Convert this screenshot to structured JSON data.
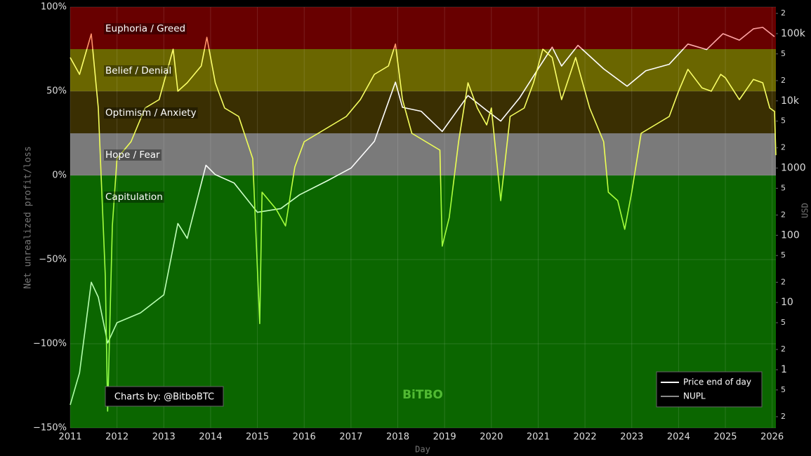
{
  "chart_data": {
    "type": "line",
    "yaxis_title": "Net unrealized profit/loss",
    "y2axis_title": "USD",
    "xaxis_title": "Day",
    "credit": "Charts by: @BitboBTC",
    "watermark": "BiTBO",
    "xlim": [
      2011,
      2026.08
    ],
    "xticks": [
      2011,
      2012,
      2013,
      2014,
      2015,
      2016,
      2017,
      2018,
      2019,
      2020,
      2021,
      2022,
      2023,
      2024,
      2025,
      2026
    ],
    "ylim": [
      -150,
      100
    ],
    "yticks": [
      {
        "value": -150,
        "label": "−150%"
      },
      {
        "value": -100,
        "label": "−100%"
      },
      {
        "value": -50,
        "label": "−50%"
      },
      {
        "value": 0,
        "label": "0%"
      },
      {
        "value": 50,
        "label": "50%"
      },
      {
        "value": 100,
        "label": "100%"
      }
    ],
    "y2_log": true,
    "y2lim": [
      0.136,
      249000
    ],
    "y2ticks": [
      {
        "value": 0.2,
        "label": "2"
      },
      {
        "value": 0.5,
        "label": "5"
      },
      1,
      2,
      5,
      10,
      {
        "value": 20,
        "label": "2"
      },
      {
        "value": 50,
        "label": "5"
      },
      100,
      {
        "value": 200,
        "label": "2"
      },
      {
        "value": 500,
        "label": "5"
      },
      1000,
      {
        "value": 2000,
        "label": "2"
      },
      {
        "value": 5000,
        "label": "5"
      },
      {
        "value": 10000,
        "label": "10k"
      },
      {
        "value": 20000,
        "label": "2"
      },
      {
        "value": 50000,
        "label": "5"
      },
      {
        "value": 100000,
        "label": "100k"
      },
      {
        "value": 200000,
        "label": "2"
      }
    ],
    "grid": true,
    "legend": "bottom-right",
    "zones": [
      {
        "name": "Euphoria / Greed",
        "from": 75,
        "to": 100,
        "color": "#680000"
      },
      {
        "name": "Belief / Denial",
        "from": 50,
        "to": 75,
        "color": "#6a6600"
      },
      {
        "name": "Optimism / Anxiety",
        "from": 25,
        "to": 50,
        "color": "#3a2f02"
      },
      {
        "name": "Hope / Fear",
        "from": 0,
        "to": 25,
        "color": "#7a7a7a"
      },
      {
        "name": "Capitulation",
        "from": -150,
        "to": 0,
        "color": "#0b6600"
      }
    ],
    "series": [
      {
        "name": "Price end of day",
        "color": "#ffffff",
        "axis": "y2",
        "x": [
          2011.0,
          2011.2,
          2011.45,
          2011.6,
          2011.8,
          2012.0,
          2012.5,
          2013.0,
          2013.3,
          2013.5,
          2013.9,
          2014.1,
          2014.5,
          2015.0,
          2015.5,
          2015.9,
          2016.5,
          2017.0,
          2017.5,
          2017.95,
          2018.1,
          2018.5,
          2018.95,
          2019.5,
          2019.9,
          2020.2,
          2020.6,
          2021.0,
          2021.3,
          2021.5,
          2021.85,
          2022.4,
          2022.9,
          2023.3,
          2023.8,
          2024.2,
          2024.6,
          2024.95,
          2025.3,
          2025.6,
          2025.8,
          2026.05
        ],
        "values": [
          0.3,
          0.9,
          20,
          12,
          2.5,
          5,
          7,
          13,
          150,
          90,
          1100,
          800,
          600,
          220,
          250,
          400,
          650,
          1000,
          2500,
          19000,
          8000,
          7000,
          3500,
          12000,
          7200,
          5000,
          11000,
          30000,
          63000,
          33000,
          67000,
          30000,
          16500,
          28000,
          35000,
          70000,
          58000,
          100000,
          80000,
          118000,
          124000,
          90000
        ]
      },
      {
        "name": "NUPL",
        "color": "#8a8a8a",
        "x": [
          2011.0,
          2011.2,
          2011.45,
          2011.6,
          2011.75,
          2011.8,
          2011.9,
          2012.0,
          2012.3,
          2012.6,
          2012.9,
          2013.2,
          2013.3,
          2013.5,
          2013.8,
          2013.92,
          2014.1,
          2014.3,
          2014.6,
          2014.9,
          2015.05,
          2015.1,
          2015.4,
          2015.6,
          2015.8,
          2016.0,
          2016.3,
          2016.6,
          2016.9,
          2017.2,
          2017.5,
          2017.8,
          2017.95,
          2018.1,
          2018.3,
          2018.6,
          2018.9,
          2018.95,
          2019.1,
          2019.3,
          2019.5,
          2019.7,
          2019.9,
          2020.0,
          2020.2,
          2020.4,
          2020.7,
          2020.9,
          2021.1,
          2021.3,
          2021.5,
          2021.8,
          2021.9,
          2022.1,
          2022.4,
          2022.5,
          2022.7,
          2022.85,
          2023.0,
          2023.2,
          2023.5,
          2023.8,
          2024.0,
          2024.2,
          2024.5,
          2024.7,
          2024.9,
          2025.0,
          2025.3,
          2025.6,
          2025.8,
          2025.95,
          2026.05,
          2026.08
        ],
        "values": [
          70,
          60,
          84,
          40,
          -60,
          -140,
          -30,
          10,
          20,
          40,
          45,
          75,
          50,
          55,
          65,
          82,
          55,
          40,
          35,
          10,
          -88,
          -10,
          -20,
          -30,
          5,
          20,
          25,
          30,
          35,
          45,
          60,
          65,
          78,
          45,
          25,
          20,
          15,
          -42,
          -25,
          20,
          55,
          40,
          30,
          40,
          -15,
          35,
          40,
          55,
          75,
          70,
          45,
          70,
          60,
          40,
          20,
          -10,
          -15,
          -32,
          -10,
          25,
          30,
          35,
          50,
          63,
          52,
          50,
          60,
          58,
          45,
          57,
          55,
          40,
          38,
          12
        ]
      }
    ]
  }
}
